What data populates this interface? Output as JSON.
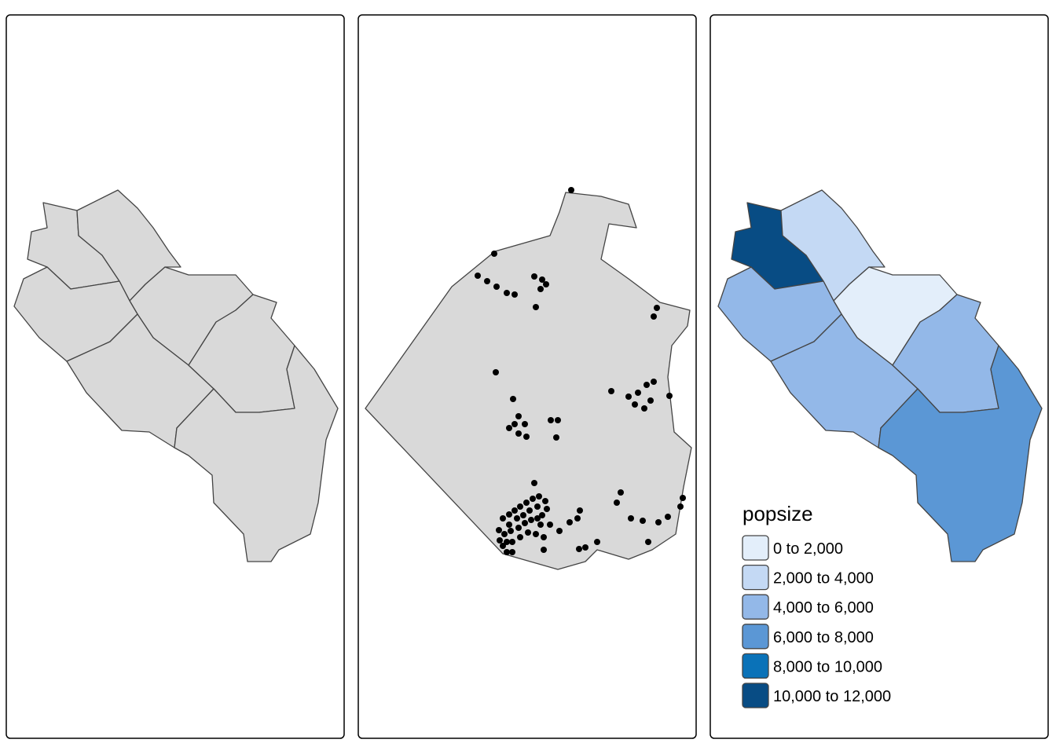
{
  "legend": {
    "title": "popsize",
    "items": [
      {
        "label": "0 to 2,000",
        "color": "#e3eefa"
      },
      {
        "label": "2,000 to 4,000",
        "color": "#c4d9f4"
      },
      {
        "label": "4,000 to 6,000",
        "color": "#93b8e8"
      },
      {
        "label": "6,000 to 8,000",
        "color": "#5b97d5"
      },
      {
        "label": "8,000 to 10,000",
        "color": "#0a72b8"
      },
      {
        "label": "10,000 to 12,000",
        "color": "#084c84"
      }
    ]
  }
}
